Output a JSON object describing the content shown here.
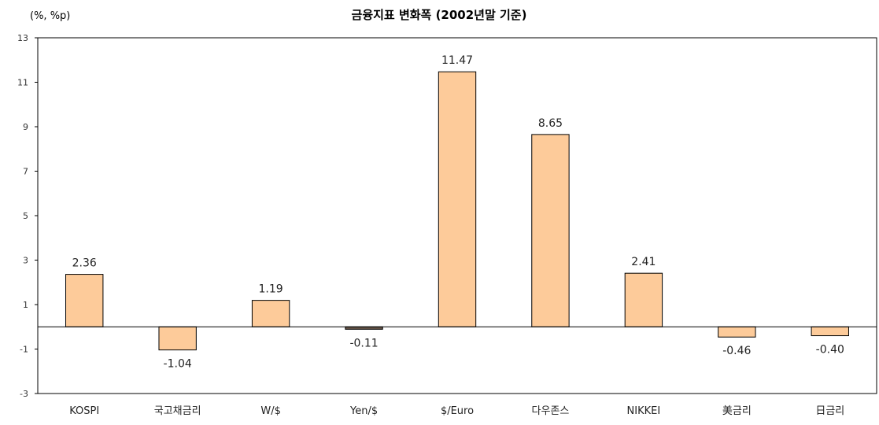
{
  "chart_data": {
    "type": "bar",
    "title": "금융지표 변화폭 (2002년말 기준)",
    "unit_label": "(%, %p)",
    "ylim": [
      -3,
      13
    ],
    "yticks": [
      -3,
      -1,
      1,
      3,
      5,
      7,
      9,
      11,
      13
    ],
    "categories": [
      "KOSPI",
      "국고채금리",
      "W/$",
      "Yen/$",
      "$/Euro",
      "다우존스",
      "NIKKEI",
      "美금리",
      "日금리"
    ],
    "values": [
      2.36,
      -1.04,
      1.19,
      -0.11,
      11.47,
      8.65,
      2.41,
      -0.46,
      -0.4
    ],
    "value_labels": [
      "2.36",
      "-1.04",
      "1.19",
      "-0.11",
      "11.47",
      "8.65",
      "2.41",
      "-0.46",
      "-0.40"
    ],
    "bar_color": "#FDCB9A",
    "highlight_bar_color": "#6b5a4c",
    "highlight_index": 3,
    "bar_stroke": "#000000",
    "grid": false,
    "legend": "none"
  }
}
